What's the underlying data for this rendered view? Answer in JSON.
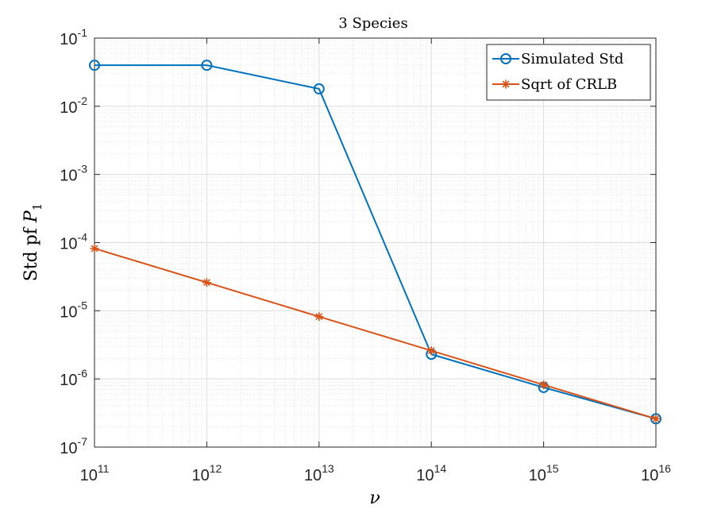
{
  "chart_data": {
    "type": "line",
    "title": "3 Species",
    "xlabel": "ν",
    "ylabel_prefix": "Std pf ",
    "ylabel_var": "P",
    "ylabel_sub": "1",
    "xscale": "log",
    "yscale": "log",
    "xlim": [
      100000000000.0,
      1e+16
    ],
    "ylim": [
      1e-07,
      0.1
    ],
    "grid": true,
    "minor_grid": true,
    "legend_position": "top-right",
    "x_ticks": [
      {
        "base": "10",
        "exp": "11"
      },
      {
        "base": "10",
        "exp": "12"
      },
      {
        "base": "10",
        "exp": "13"
      },
      {
        "base": "10",
        "exp": "14"
      },
      {
        "base": "10",
        "exp": "15"
      },
      {
        "base": "10",
        "exp": "16"
      }
    ],
    "y_ticks": [
      {
        "base": "10",
        "exp": "-7"
      },
      {
        "base": "10",
        "exp": "-6"
      },
      {
        "base": "10",
        "exp": "-5"
      },
      {
        "base": "10",
        "exp": "-4"
      },
      {
        "base": "10",
        "exp": "-3"
      },
      {
        "base": "10",
        "exp": "-2"
      },
      {
        "base": "10",
        "exp": "-1"
      }
    ],
    "x": [
      100000000000.0,
      1000000000000.0,
      10000000000000.0,
      100000000000000.0,
      1000000000000000.0,
      1e+16
    ],
    "series": [
      {
        "name": "Simulated Std",
        "color": "#0072BD",
        "marker": "circle",
        "values": [
          0.04,
          0.04,
          0.018,
          2.3e-06,
          7.5e-07,
          2.6e-07
        ]
      },
      {
        "name": "Sqrt of CRLB",
        "color": "#D95319",
        "marker": "asterisk",
        "values": [
          8.2e-05,
          2.6e-05,
          8.2e-06,
          2.6e-06,
          8.2e-07,
          2.6e-07
        ]
      }
    ]
  }
}
